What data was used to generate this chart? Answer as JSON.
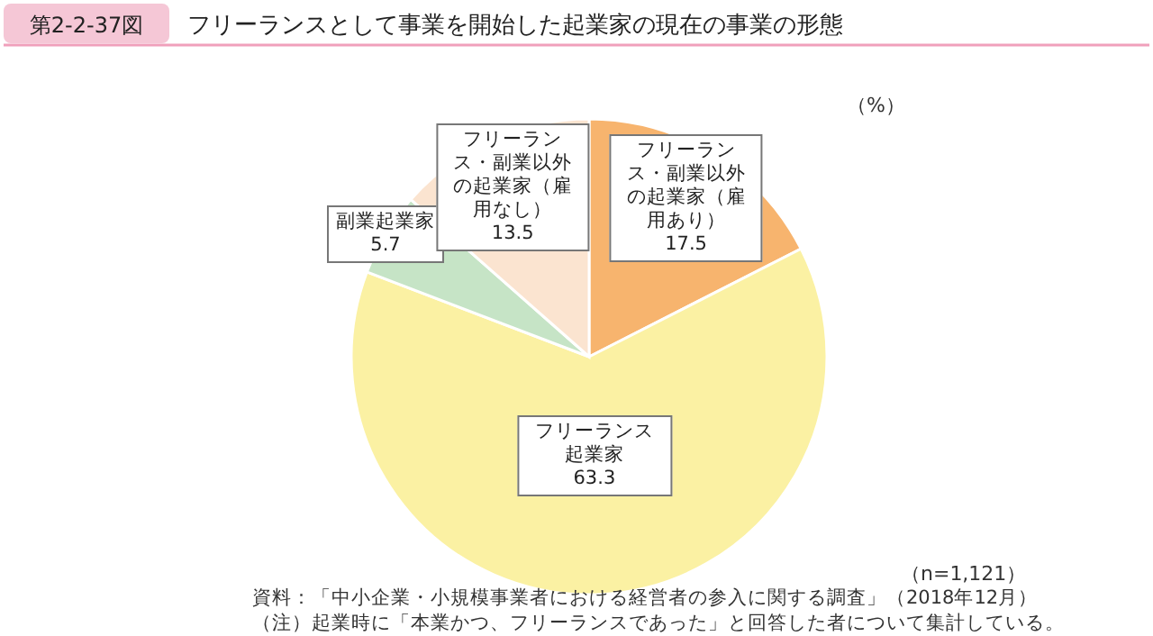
{
  "chart_data": {
    "type": "pie",
    "subtitle": "第2-2-37図",
    "title": "フリーランスとして事業を開始した起業家の現在の事業の形態",
    "categories": [
      "フリーランス・副業以外の起業家（雇用あり）",
      "フリーランス起業家",
      "副業起業家",
      "フリーランス・副業以外の起業家（雇用なし）"
    ],
    "values": [
      17.5,
      63.3,
      5.7,
      13.5
    ],
    "colors": [
      "#f7b46e",
      "#fbf1a3",
      "#c6e4c6",
      "#fbe4d0"
    ],
    "data_labels": true,
    "annotations": [
      "（%）",
      "（n=1,121）",
      "資料：「中小企業・小規模事業者における経営者の参入に関する調査」（2018年12月）",
      "（注）起業時に「本業かつ、フリーランスであった」と回答した者について集計している。"
    ]
  }
}
